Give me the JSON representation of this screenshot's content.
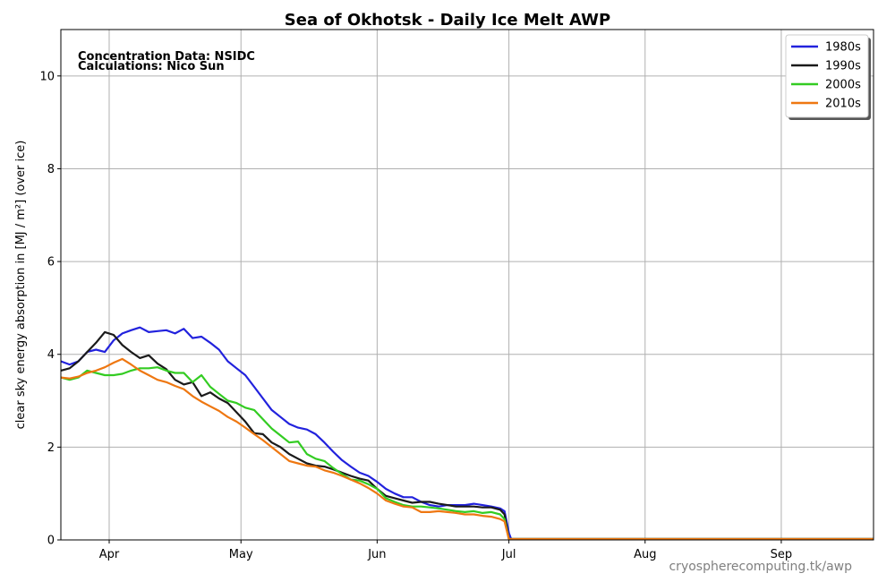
{
  "chart_data": {
    "type": "line",
    "title": "Sea of Okhotsk - Daily Ice Melt  AWP",
    "annotations": [
      "Concentration Data: NSIDC",
      "Calculations: Nico Sun"
    ],
    "watermark": "cryospherecomputing.tk/awp",
    "xlabel": "",
    "ylabel": "clear sky energy absorption in  [MJ / m²] (over ice)",
    "x_unit": "day of year",
    "xlim": [
      80,
      265
    ],
    "ylim": [
      0,
      11
    ],
    "yticks": [
      0,
      2,
      4,
      6,
      8,
      10
    ],
    "xticks": [
      {
        "label": "Apr",
        "day": 91
      },
      {
        "label": "May",
        "day": 121
      },
      {
        "label": "Jun",
        "day": 152
      },
      {
        "label": "Jul",
        "day": 182
      },
      {
        "label": "Aug",
        "day": 213
      },
      {
        "label": "Sep",
        "day": 244
      }
    ],
    "grid": true,
    "legend_position": "top-right",
    "series": [
      {
        "name": "1980s",
        "color": "#2222dd",
        "points": [
          [
            80,
            3.85
          ],
          [
            82,
            3.78
          ],
          [
            84,
            3.85
          ],
          [
            86,
            4.05
          ],
          [
            88,
            4.1
          ],
          [
            90,
            4.05
          ],
          [
            92,
            4.3
          ],
          [
            94,
            4.45
          ],
          [
            96,
            4.52
          ],
          [
            98,
            4.58
          ],
          [
            100,
            4.48
          ],
          [
            102,
            4.5
          ],
          [
            104,
            4.52
          ],
          [
            106,
            4.45
          ],
          [
            108,
            4.55
          ],
          [
            110,
            4.35
          ],
          [
            112,
            4.38
          ],
          [
            114,
            4.25
          ],
          [
            116,
            4.1
          ],
          [
            118,
            3.85
          ],
          [
            120,
            3.7
          ],
          [
            122,
            3.55
          ],
          [
            124,
            3.3
          ],
          [
            126,
            3.05
          ],
          [
            128,
            2.8
          ],
          [
            130,
            2.65
          ],
          [
            132,
            2.5
          ],
          [
            134,
            2.42
          ],
          [
            136,
            2.38
          ],
          [
            138,
            2.28
          ],
          [
            140,
            2.1
          ],
          [
            142,
            1.9
          ],
          [
            144,
            1.72
          ],
          [
            146,
            1.58
          ],
          [
            148,
            1.45
          ],
          [
            150,
            1.38
          ],
          [
            152,
            1.25
          ],
          [
            154,
            1.1
          ],
          [
            156,
            1.0
          ],
          [
            158,
            0.92
          ],
          [
            160,
            0.92
          ],
          [
            162,
            0.82
          ],
          [
            164,
            0.75
          ],
          [
            166,
            0.72
          ],
          [
            168,
            0.75
          ],
          [
            170,
            0.75
          ],
          [
            172,
            0.75
          ],
          [
            174,
            0.78
          ],
          [
            176,
            0.75
          ],
          [
            178,
            0.72
          ],
          [
            180,
            0.68
          ],
          [
            181,
            0.62
          ],
          [
            182,
            0.15
          ],
          [
            182.5,
            0.02
          ],
          [
            265,
            0.02
          ]
        ]
      },
      {
        "name": "1990s",
        "color": "#1a1a1a",
        "points": [
          [
            80,
            3.65
          ],
          [
            82,
            3.7
          ],
          [
            84,
            3.85
          ],
          [
            86,
            4.05
          ],
          [
            88,
            4.25
          ],
          [
            90,
            4.48
          ],
          [
            92,
            4.42
          ],
          [
            94,
            4.2
          ],
          [
            96,
            4.05
          ],
          [
            98,
            3.92
          ],
          [
            100,
            3.98
          ],
          [
            102,
            3.8
          ],
          [
            104,
            3.68
          ],
          [
            106,
            3.45
          ],
          [
            108,
            3.35
          ],
          [
            110,
            3.4
          ],
          [
            112,
            3.1
          ],
          [
            114,
            3.18
          ],
          [
            116,
            3.05
          ],
          [
            118,
            2.95
          ],
          [
            120,
            2.75
          ],
          [
            122,
            2.55
          ],
          [
            124,
            2.3
          ],
          [
            126,
            2.28
          ],
          [
            128,
            2.1
          ],
          [
            130,
            2.0
          ],
          [
            132,
            1.85
          ],
          [
            134,
            1.75
          ],
          [
            136,
            1.65
          ],
          [
            138,
            1.6
          ],
          [
            140,
            1.58
          ],
          [
            142,
            1.52
          ],
          [
            144,
            1.45
          ],
          [
            146,
            1.38
          ],
          [
            148,
            1.32
          ],
          [
            150,
            1.28
          ],
          [
            152,
            1.1
          ],
          [
            154,
            0.95
          ],
          [
            156,
            0.9
          ],
          [
            158,
            0.85
          ],
          [
            160,
            0.8
          ],
          [
            162,
            0.82
          ],
          [
            164,
            0.82
          ],
          [
            166,
            0.78
          ],
          [
            168,
            0.75
          ],
          [
            170,
            0.72
          ],
          [
            172,
            0.72
          ],
          [
            174,
            0.72
          ],
          [
            176,
            0.7
          ],
          [
            178,
            0.7
          ],
          [
            180,
            0.65
          ],
          [
            181,
            0.55
          ],
          [
            182,
            0.02
          ],
          [
            265,
            0.02
          ]
        ]
      },
      {
        "name": "2000s",
        "color": "#33cc22",
        "points": [
          [
            80,
            3.5
          ],
          [
            82,
            3.45
          ],
          [
            84,
            3.5
          ],
          [
            86,
            3.65
          ],
          [
            88,
            3.6
          ],
          [
            90,
            3.55
          ],
          [
            92,
            3.55
          ],
          [
            94,
            3.58
          ],
          [
            96,
            3.65
          ],
          [
            98,
            3.7
          ],
          [
            100,
            3.7
          ],
          [
            102,
            3.72
          ],
          [
            104,
            3.65
          ],
          [
            106,
            3.6
          ],
          [
            108,
            3.6
          ],
          [
            110,
            3.4
          ],
          [
            112,
            3.55
          ],
          [
            114,
            3.3
          ],
          [
            116,
            3.15
          ],
          [
            118,
            3.0
          ],
          [
            120,
            2.95
          ],
          [
            122,
            2.85
          ],
          [
            124,
            2.8
          ],
          [
            126,
            2.6
          ],
          [
            128,
            2.4
          ],
          [
            130,
            2.25
          ],
          [
            132,
            2.1
          ],
          [
            134,
            2.12
          ],
          [
            136,
            1.85
          ],
          [
            138,
            1.75
          ],
          [
            140,
            1.7
          ],
          [
            142,
            1.55
          ],
          [
            144,
            1.42
          ],
          [
            146,
            1.3
          ],
          [
            148,
            1.28
          ],
          [
            150,
            1.2
          ],
          [
            152,
            1.1
          ],
          [
            154,
            0.9
          ],
          [
            156,
            0.82
          ],
          [
            158,
            0.75
          ],
          [
            160,
            0.72
          ],
          [
            162,
            0.72
          ],
          [
            164,
            0.7
          ],
          [
            166,
            0.68
          ],
          [
            168,
            0.65
          ],
          [
            170,
            0.62
          ],
          [
            172,
            0.6
          ],
          [
            174,
            0.62
          ],
          [
            176,
            0.58
          ],
          [
            178,
            0.6
          ],
          [
            180,
            0.55
          ],
          [
            181,
            0.45
          ],
          [
            182,
            0.02
          ],
          [
            265,
            0.02
          ]
        ]
      },
      {
        "name": "2010s",
        "color": "#ee7711",
        "points": [
          [
            80,
            3.5
          ],
          [
            82,
            3.48
          ],
          [
            84,
            3.52
          ],
          [
            86,
            3.6
          ],
          [
            88,
            3.65
          ],
          [
            90,
            3.72
          ],
          [
            92,
            3.82
          ],
          [
            94,
            3.9
          ],
          [
            96,
            3.78
          ],
          [
            98,
            3.65
          ],
          [
            100,
            3.55
          ],
          [
            102,
            3.45
          ],
          [
            104,
            3.4
          ],
          [
            106,
            3.32
          ],
          [
            108,
            3.25
          ],
          [
            110,
            3.1
          ],
          [
            112,
            2.98
          ],
          [
            114,
            2.88
          ],
          [
            116,
            2.78
          ],
          [
            118,
            2.65
          ],
          [
            120,
            2.55
          ],
          [
            122,
            2.42
          ],
          [
            124,
            2.28
          ],
          [
            126,
            2.15
          ],
          [
            128,
            2.0
          ],
          [
            130,
            1.85
          ],
          [
            132,
            1.7
          ],
          [
            134,
            1.65
          ],
          [
            136,
            1.6
          ],
          [
            138,
            1.58
          ],
          [
            140,
            1.5
          ],
          [
            142,
            1.45
          ],
          [
            144,
            1.38
          ],
          [
            146,
            1.3
          ],
          [
            148,
            1.22
          ],
          [
            150,
            1.12
          ],
          [
            152,
            1.0
          ],
          [
            154,
            0.85
          ],
          [
            156,
            0.78
          ],
          [
            158,
            0.72
          ],
          [
            160,
            0.7
          ],
          [
            162,
            0.6
          ],
          [
            164,
            0.6
          ],
          [
            166,
            0.62
          ],
          [
            168,
            0.6
          ],
          [
            170,
            0.58
          ],
          [
            172,
            0.55
          ],
          [
            174,
            0.55
          ],
          [
            176,
            0.52
          ],
          [
            178,
            0.5
          ],
          [
            180,
            0.45
          ],
          [
            181,
            0.4
          ],
          [
            182,
            0.02
          ],
          [
            265,
            0.02
          ]
        ]
      }
    ]
  }
}
